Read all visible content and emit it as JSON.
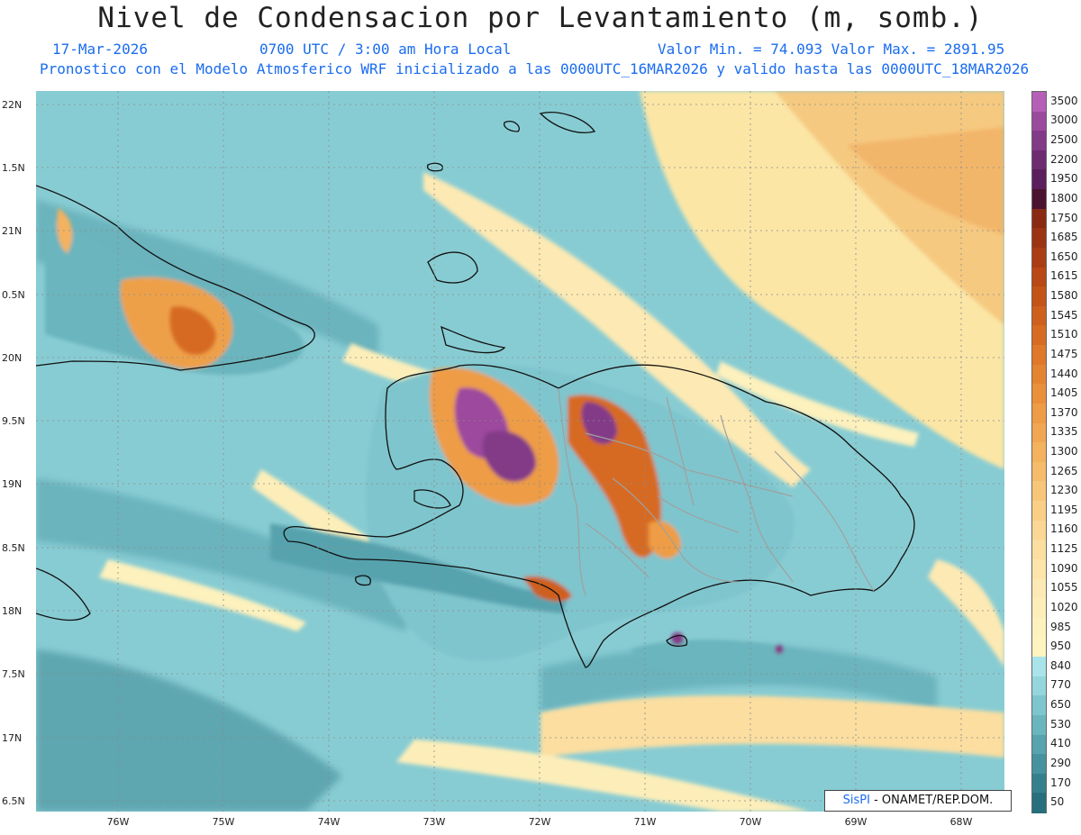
{
  "title": "Nivel de Condensacion por Levantamiento (m, somb.)",
  "header": {
    "date": "17-Mar-2026",
    "time": "0700 UTC / 3:00 am Hora Local",
    "minmax": "Valor Min. = 74.093  Valor Max. = 2891.95",
    "forecast_note": "Pronostico con el Modelo Atmosferico WRF inicializado a las 0000UTC_16MAR2026 y valido hasta las  0000UTC_18MAR2026"
  },
  "credit": {
    "brand": "SisPI",
    "text": "- ONAMET/REP.DOM."
  },
  "y_axis": [
    "22N",
    "1.5N",
    "21N",
    "0.5N",
    "20N",
    "9.5N",
    "19N",
    "8.5N",
    "18N",
    "7.5N",
    "17N",
    "6.5N"
  ],
  "x_axis": [
    "76W",
    "75W",
    "74W",
    "73W",
    "72W",
    "71W",
    "70W",
    "69W",
    "68W"
  ],
  "colorbar": {
    "levels": [
      "3500",
      "3000",
      "2500",
      "2200",
      "1950",
      "1800",
      "1750",
      "1685",
      "1650",
      "1615",
      "1580",
      "1545",
      "1510",
      "1475",
      "1440",
      "1405",
      "1370",
      "1335",
      "1300",
      "1265",
      "1230",
      "1195",
      "1160",
      "1125",
      "1090",
      "1055",
      "1020",
      "985",
      "950",
      "840",
      "770",
      "650",
      "530",
      "410",
      "290",
      "170",
      "50"
    ],
    "colors": [
      "#b55fb7",
      "#9c4a9e",
      "#833a87",
      "#6d2c70",
      "#5a1f5c",
      "#4b1230",
      "#8b2a12",
      "#9c3313",
      "#aa3d14",
      "#b94816",
      "#c45318",
      "#ce5f1c",
      "#d76b21",
      "#df7828",
      "#e58430",
      "#ea903a",
      "#ee9c45",
      "#f1a751",
      "#f4b25e",
      "#f6bc6b",
      "#f8c679",
      "#f9cf86",
      "#fad794",
      "#fbdea0",
      "#fce4ab",
      "#fde9b3",
      "#fdeeb9",
      "#fdf1bd",
      "#fef4bf",
      "#a9e4ea",
      "#95d5dc",
      "#7fc5cd",
      "#6bb5be",
      "#57a3ae",
      "#46929e",
      "#36808d",
      "#286f7d"
    ]
  },
  "map": {
    "background": "#8fd2d8",
    "coastline": "#111111",
    "borders": "#a0a0a0"
  }
}
